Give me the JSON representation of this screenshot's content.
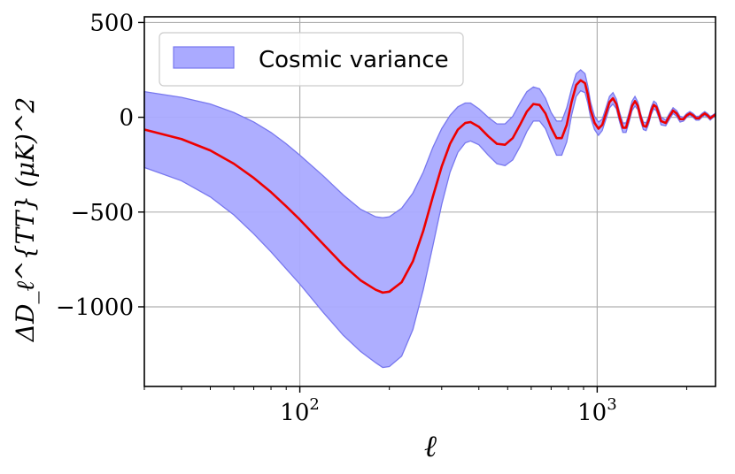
{
  "chart_data": {
    "type": "line",
    "xlabel": "ℓ",
    "ylabel": "ΔD_ℓ^{TT} (μK)^2",
    "xscale": "log",
    "xlim": [
      30,
      2500
    ],
    "ylim": [
      -1420,
      530
    ],
    "grid": true,
    "legend": {
      "placement": "top-left",
      "entries": [
        "Cosmic variance"
      ]
    },
    "x_ticks": [
      {
        "value": 100,
        "base": "10",
        "exp": "2"
      },
      {
        "value": 1000,
        "base": "10",
        "exp": "3"
      }
    ],
    "y_ticks": [
      {
        "value": 500,
        "label": "500"
      },
      {
        "value": 0,
        "label": "0"
      },
      {
        "value": -500,
        "label": "−500"
      },
      {
        "value": -1000,
        "label": "−1000"
      }
    ],
    "colors": {
      "line": "#ee0000",
      "band_fill": "#aaaaff",
      "band_edge": "#7777ee"
    },
    "series": [
      {
        "kind": "line",
        "x": [
          30,
          40,
          50,
          60,
          70,
          80,
          90,
          100,
          120,
          140,
          160,
          180,
          190,
          200,
          220,
          240,
          260,
          280,
          300,
          320,
          340,
          360,
          375,
          400,
          430,
          460,
          490,
          520,
          550,
          580,
          610,
          640,
          670,
          700,
          730,
          760,
          790,
          820,
          850,
          880,
          910,
          930,
          950,
          980,
          1010,
          1040,
          1070,
          1100,
          1130,
          1160,
          1190,
          1220,
          1250,
          1280,
          1310,
          1340,
          1370,
          1400,
          1430,
          1460,
          1490,
          1520,
          1550,
          1580,
          1610,
          1640,
          1700,
          1750,
          1800,
          1850,
          1900,
          1950,
          2000,
          2050,
          2100,
          2150,
          2200,
          2250,
          2300,
          2350,
          2400,
          2450,
          2500
        ],
        "y": [
          -65,
          -115,
          -175,
          -245,
          -320,
          -395,
          -470,
          -540,
          -670,
          -780,
          -860,
          -910,
          -925,
          -920,
          -870,
          -760,
          -600,
          -420,
          -260,
          -140,
          -65,
          -30,
          -25,
          -50,
          -100,
          -140,
          -145,
          -110,
          -40,
          30,
          70,
          65,
          20,
          -55,
          -110,
          -110,
          -40,
          80,
          170,
          195,
          180,
          120,
          40,
          -30,
          -60,
          -40,
          20,
          80,
          100,
          70,
          0,
          -55,
          -55,
          0,
          60,
          85,
          60,
          0,
          -45,
          -50,
          -15,
          35,
          65,
          55,
          20,
          -20,
          -30,
          5,
          35,
          20,
          -10,
          -10,
          10,
          20,
          10,
          -5,
          -5,
          10,
          20,
          10,
          -5,
          5,
          15
        ]
      },
      {
        "kind": "band",
        "name": "Cosmic variance",
        "x": [
          30,
          40,
          50,
          60,
          70,
          80,
          90,
          100,
          120,
          140,
          160,
          180,
          190,
          200,
          220,
          240,
          260,
          280,
          300,
          320,
          340,
          360,
          375,
          400,
          430,
          460,
          490,
          520,
          550,
          580,
          610,
          640,
          670,
          700,
          730,
          760,
          790,
          820,
          850,
          880,
          910,
          930,
          950,
          980,
          1010,
          1040,
          1070,
          1100,
          1130,
          1160,
          1190,
          1220,
          1250,
          1280,
          1310,
          1340,
          1370,
          1400,
          1430,
          1460,
          1490,
          1520,
          1550,
          1580,
          1610,
          1640,
          1700,
          1750,
          1800,
          1850,
          1900,
          1950,
          2000,
          2050,
          2100,
          2150,
          2200,
          2250,
          2300,
          2350,
          2400,
          2450,
          2500
        ],
        "upper": [
          135,
          105,
          70,
          25,
          -25,
          -80,
          -140,
          -200,
          -310,
          -410,
          -485,
          -525,
          -530,
          -525,
          -480,
          -400,
          -290,
          -160,
          -60,
          10,
          55,
          75,
          75,
          45,
          0,
          -35,
          -35,
          5,
          75,
          135,
          160,
          150,
          100,
          25,
          -20,
          -20,
          50,
          150,
          230,
          250,
          230,
          165,
          80,
          5,
          -25,
          -10,
          50,
          110,
          130,
          95,
          25,
          -30,
          -30,
          25,
          85,
          110,
          80,
          20,
          -25,
          -30,
          5,
          55,
          85,
          75,
          40,
          0,
          -15,
          20,
          50,
          35,
          5,
          0,
          20,
          30,
          20,
          5,
          5,
          20,
          30,
          20,
          5,
          12,
          22
        ],
        "lower": [
          -265,
          -335,
          -420,
          -515,
          -615,
          -710,
          -800,
          -880,
          -1030,
          -1150,
          -1235,
          -1295,
          -1320,
          -1315,
          -1260,
          -1120,
          -910,
          -680,
          -460,
          -290,
          -185,
          -135,
          -125,
          -145,
          -200,
          -245,
          -255,
          -225,
          -155,
          -75,
          -20,
          -20,
          -60,
          -135,
          -200,
          -200,
          -130,
          10,
          110,
          140,
          130,
          75,
          0,
          -65,
          -95,
          -70,
          -10,
          50,
          70,
          45,
          -25,
          -80,
          -80,
          -25,
          35,
          60,
          40,
          -20,
          -65,
          -70,
          -35,
          15,
          45,
          35,
          0,
          -40,
          -45,
          -10,
          20,
          5,
          -25,
          -20,
          0,
          10,
          0,
          -15,
          -15,
          0,
          10,
          0,
          -15,
          -2,
          8
        ]
      }
    ]
  }
}
